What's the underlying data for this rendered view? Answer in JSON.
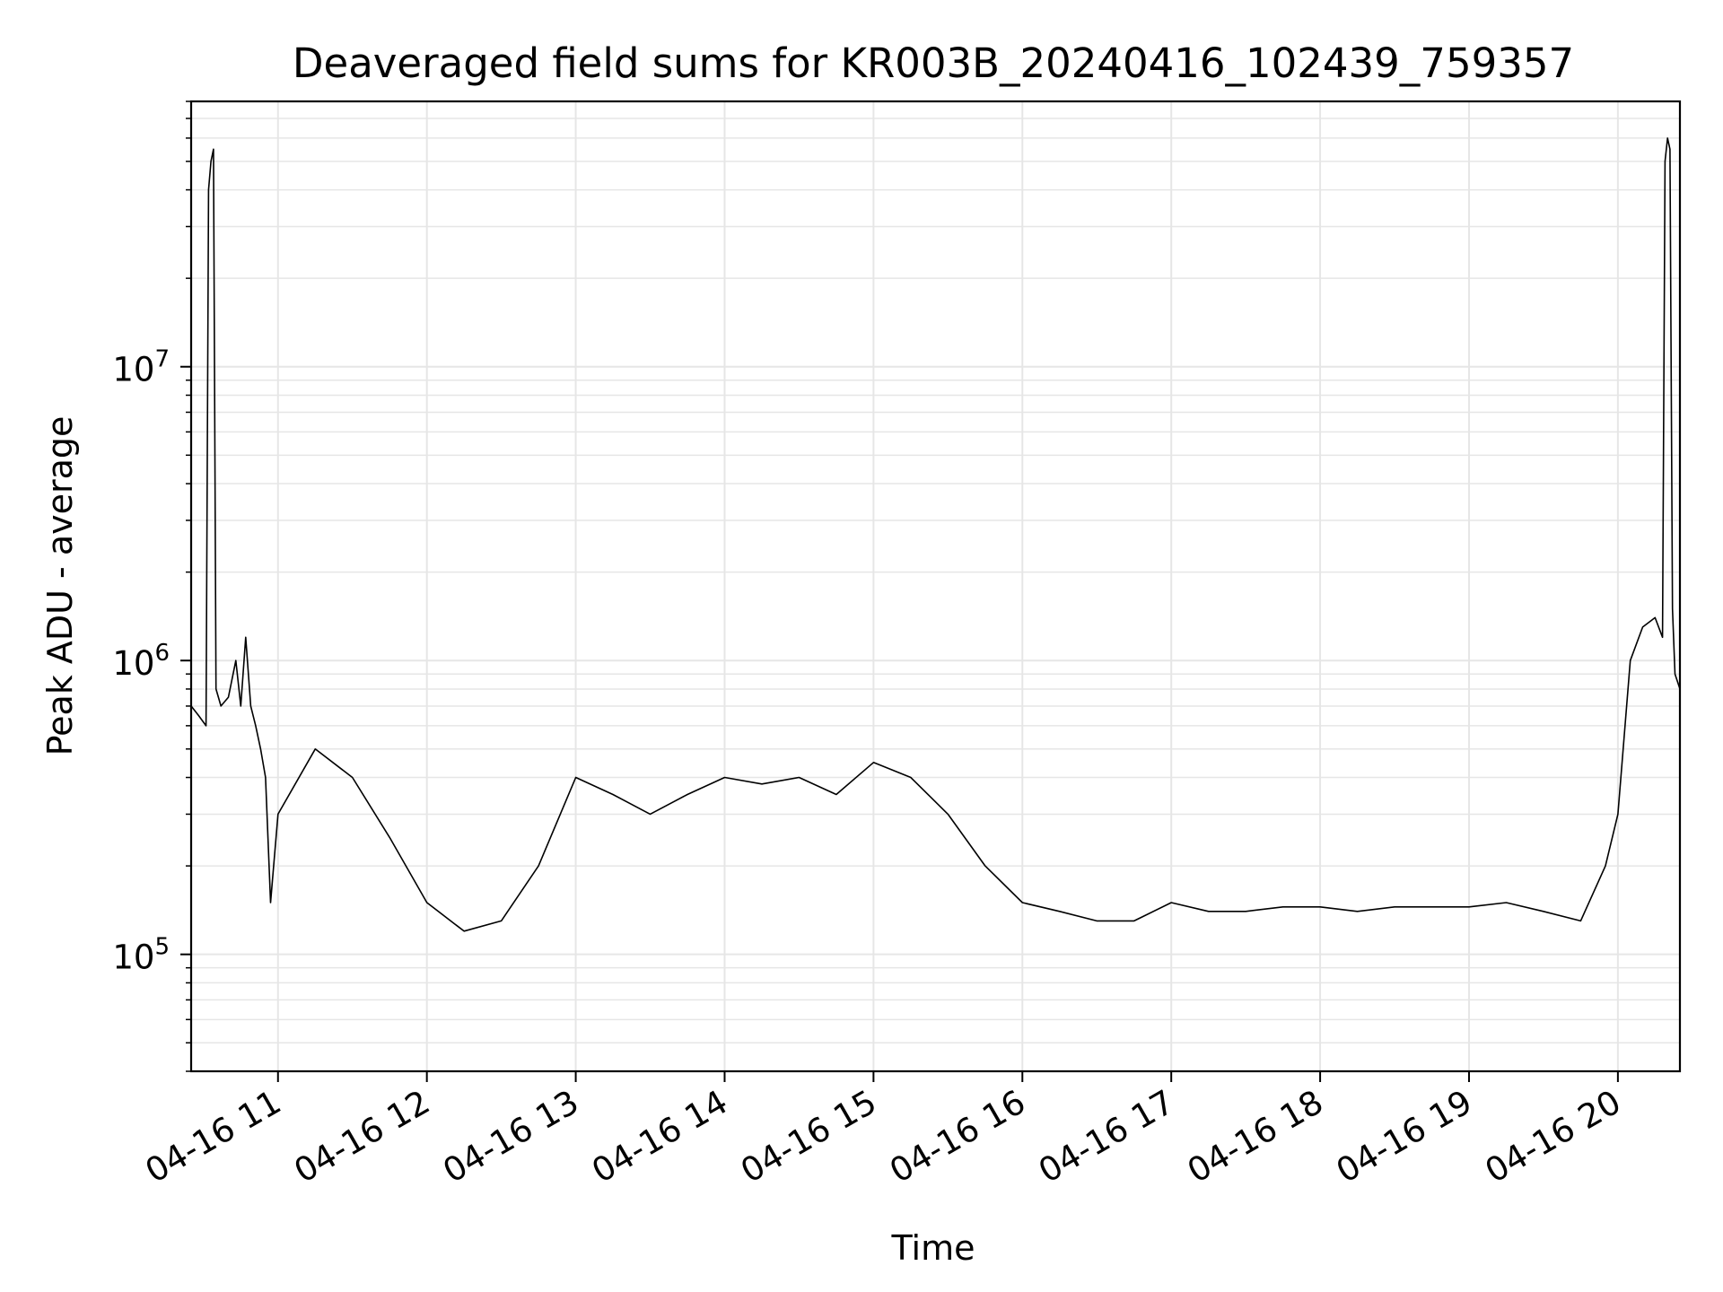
{
  "chart_data": {
    "type": "line",
    "title": "Deaveraged field sums for KR003B_20240416_102439_759357",
    "xlabel": "Time",
    "ylabel": "Peak ADU - average",
    "yscale": "log",
    "grid": true,
    "line_color": "#000000",
    "grid_color": "#e6e6e6",
    "xlim": [
      "2024-04-16 10:25",
      "2024-04-16 20:25"
    ],
    "ylim": [
      40000,
      80000000
    ],
    "x_ticks": [
      {
        "value": "2024-04-16 11:00",
        "label": "04-16 11"
      },
      {
        "value": "2024-04-16 12:00",
        "label": "04-16 12"
      },
      {
        "value": "2024-04-16 13:00",
        "label": "04-16 13"
      },
      {
        "value": "2024-04-16 14:00",
        "label": "04-16 14"
      },
      {
        "value": "2024-04-16 15:00",
        "label": "04-16 15"
      },
      {
        "value": "2024-04-16 16:00",
        "label": "04-16 16"
      },
      {
        "value": "2024-04-16 17:00",
        "label": "04-16 17"
      },
      {
        "value": "2024-04-16 18:00",
        "label": "04-16 18"
      },
      {
        "value": "2024-04-16 19:00",
        "label": "04-16 19"
      },
      {
        "value": "2024-04-16 20:00",
        "label": "04-16 20"
      }
    ],
    "y_ticks": [
      {
        "value": 100000,
        "base": "10",
        "exp": "5"
      },
      {
        "value": 1000000,
        "base": "10",
        "exp": "6"
      },
      {
        "value": 10000000,
        "base": "10",
        "exp": "7"
      }
    ],
    "series": [
      {
        "x": [
          "2024-04-16 10:25",
          "2024-04-16 10:28",
          "2024-04-16 10:31",
          "2024-04-16 10:32",
          "2024-04-16 10:33",
          "2024-04-16 10:34",
          "2024-04-16 10:35",
          "2024-04-16 10:37",
          "2024-04-16 10:40",
          "2024-04-16 10:43",
          "2024-04-16 10:45",
          "2024-04-16 10:47",
          "2024-04-16 10:49",
          "2024-04-16 10:51",
          "2024-04-16 10:53",
          "2024-04-16 10:55",
          "2024-04-16 10:57",
          "2024-04-16 11:00",
          "2024-04-16 11:15",
          "2024-04-16 11:30",
          "2024-04-16 11:45",
          "2024-04-16 12:00",
          "2024-04-16 12:15",
          "2024-04-16 12:30",
          "2024-04-16 12:45",
          "2024-04-16 13:00",
          "2024-04-16 13:15",
          "2024-04-16 13:30",
          "2024-04-16 13:45",
          "2024-04-16 14:00",
          "2024-04-16 14:15",
          "2024-04-16 14:30",
          "2024-04-16 14:45",
          "2024-04-16 15:00",
          "2024-04-16 15:15",
          "2024-04-16 15:30",
          "2024-04-16 15:45",
          "2024-04-16 16:00",
          "2024-04-16 16:15",
          "2024-04-16 16:30",
          "2024-04-16 16:45",
          "2024-04-16 17:00",
          "2024-04-16 17:15",
          "2024-04-16 17:30",
          "2024-04-16 17:45",
          "2024-04-16 18:00",
          "2024-04-16 18:15",
          "2024-04-16 18:30",
          "2024-04-16 18:45",
          "2024-04-16 19:00",
          "2024-04-16 19:15",
          "2024-04-16 19:30",
          "2024-04-16 19:45",
          "2024-04-16 19:55",
          "2024-04-16 20:00",
          "2024-04-16 20:05",
          "2024-04-16 20:10",
          "2024-04-16 20:15",
          "2024-04-16 20:18",
          "2024-04-16 20:19",
          "2024-04-16 20:20",
          "2024-04-16 20:21",
          "2024-04-16 20:22",
          "2024-04-16 20:23",
          "2024-04-16 20:25"
        ],
        "y": [
          700000,
          650000,
          600000,
          40000000,
          50000000,
          55000000,
          800000,
          700000,
          750000,
          1000000,
          700000,
          1200000,
          700000,
          600000,
          500000,
          400000,
          150000,
          300000,
          500000,
          400000,
          250000,
          150000,
          120000,
          130000,
          200000,
          400000,
          350000,
          300000,
          350000,
          400000,
          380000,
          400000,
          350000,
          450000,
          400000,
          300000,
          200000,
          150000,
          140000,
          130000,
          130000,
          150000,
          140000,
          140000,
          145000,
          145000,
          140000,
          145000,
          145000,
          145000,
          150000,
          140000,
          130000,
          200000,
          300000,
          1000000,
          1300000,
          1400000,
          1200000,
          50000000,
          60000000,
          55000000,
          1500000,
          900000,
          800000
        ]
      }
    ]
  }
}
